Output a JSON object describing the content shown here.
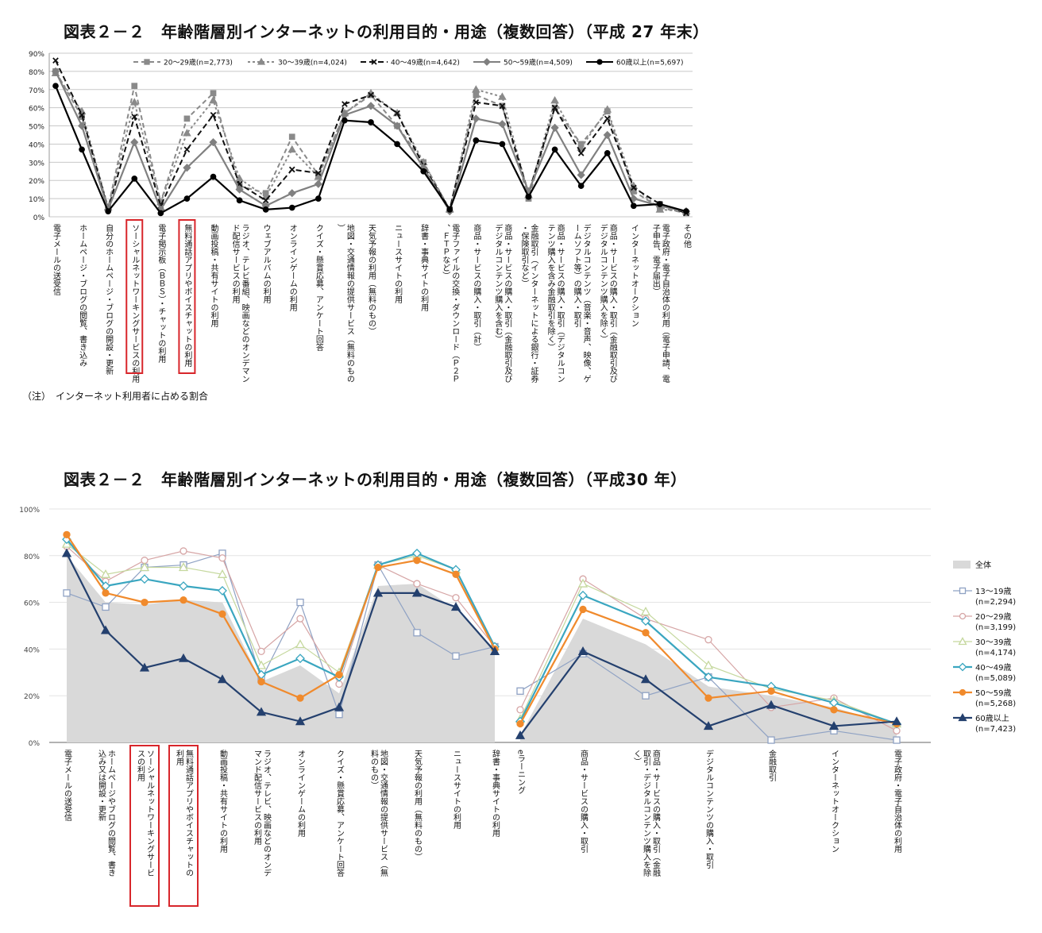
{
  "chart_data": [
    {
      "type": "line",
      "title": "図表２－２　年齢階層別インターネットの利用目的・用途（複数回答）（平成 27 年末）",
      "note": "（注）　インターネット利用者に占める割合",
      "ylim": [
        0,
        90
      ],
      "yticks": [
        "0%",
        "10%",
        "20%",
        "30%",
        "40%",
        "50%",
        "60%",
        "70%",
        "80%",
        "90%"
      ],
      "grid": true,
      "legend_position": "top",
      "categories": [
        "電子メールの送受信",
        "ホームページ・ブログの閲覧、書き込み",
        "自分のホームページ・ブログの開設・更新",
        "ソーシャルネットワーキングサービスの利用",
        "電子掲示板（ＢＢＳ）・チャットの利用",
        "無料通話アプリやボイスチャットの利用",
        "動画投稿・共有サイトの利用",
        "ラジオ、テレビ番組、映画などのオンデマンド配信サービスの利用",
        "ウェブアルバムの利用",
        "オンラインゲームの利用",
        "クイズ・懸賞応募、アンケート回答",
        "地図・交通情報の提供サービス（無料のもの）",
        "天気予報の利用（無料のもの）",
        "ニュースサイトの利用",
        "辞書・事典サイトの利用",
        "電子ファイルの交換・ダウンロード（Ｐ２Ｐ、ＦＴＰなど）",
        "商品・サービスの購入・取引（計）",
        "商品・サービスの購入・取引（金融取引及びデジタルコンテンツ購入を含む）",
        "金融取引（インターネットによる銀行・証券・保険取引など）",
        "商品・サービスの購入・取引（デジタルコンテンツ購入を含み金融取引を除く）",
        "デジタルコンテンツ（音楽・音声、映像、ゲームソフト等）の購入・取引",
        "商品・サービスの購入・取引（金融取引及びデジタルコンテンツ購入を除く）",
        "インターネットオークション",
        "電子政府・電子自治体の利用（電子申請、電子申告、電子届出）",
        "その他"
      ],
      "highlighted": [
        3,
        5
      ],
      "series": [
        {
          "name": "20～29歳(n=2,773)",
          "color": "#8a8a8a",
          "dash": "6,4",
          "marker": "square",
          "values": [
            80,
            55,
            5,
            72,
            8,
            54,
            68,
            17,
            13,
            44,
            23,
            57,
            67,
            50,
            30,
            4,
            67,
            61,
            10,
            60,
            40,
            58,
            14,
            5,
            2
          ]
        },
        {
          "name": "30～39歳(n=4,024)",
          "color": "#8a8a8a",
          "dash": "3,3",
          "marker": "triangle",
          "values": [
            79,
            58,
            5,
            63,
            8,
            46,
            64,
            21,
            11,
            37,
            22,
            57,
            68,
            57,
            30,
            4,
            70,
            66,
            12,
            64,
            38,
            59,
            17,
            4,
            3
          ]
        },
        {
          "name": "40～49歳(n=4,642)",
          "color": "#111111",
          "dash": "7,4",
          "marker": "x",
          "values": [
            86,
            56,
            4,
            55,
            6,
            37,
            56,
            18,
            9,
            26,
            24,
            62,
            67,
            57,
            28,
            4,
            63,
            61,
            13,
            60,
            35,
            54,
            16,
            7,
            2
          ]
        },
        {
          "name": "50～59歳(n=4,509)",
          "color": "#808080",
          "dash": "",
          "marker": "diamond",
          "values": [
            80,
            50,
            4,
            41,
            4,
            27,
            41,
            15,
            6,
            13,
            18,
            56,
            61,
            50,
            27,
            3,
            54,
            51,
            14,
            49,
            23,
            45,
            10,
            6,
            3
          ]
        },
        {
          "name": "60歳以上(n=5,697)",
          "color": "#000000",
          "dash": "",
          "marker": "circle",
          "values": [
            72,
            37,
            3,
            21,
            2,
            10,
            22,
            9,
            4,
            5,
            10,
            53,
            52,
            40,
            25,
            4,
            42,
            40,
            11,
            37,
            17,
            35,
            6,
            7,
            3
          ]
        }
      ]
    },
    {
      "type": "line",
      "title": "図表２－２　年齢階層別インターネットの利用目的・用途（複数回答）（平成30 年）",
      "ylim": [
        0,
        100
      ],
      "yticks": [
        "0%",
        "20%",
        "40%",
        "60%",
        "80%",
        "100%"
      ],
      "grid": true,
      "legend_position": "right",
      "categories": [
        "電子メールの送受信",
        "ホームページやブログの閲覧、書き込み又は開設・更新",
        "ソーシャルネットワーキングサービスの利用",
        "無料通話アプリやボイスチャットの利用",
        "動画投稿・共有サイトの利用",
        "ラジオ、テレビ、映画などのオンデマンド配信サービスの利用",
        "オンラインゲームの利用",
        "クイズ・懸賞応募、アンケート回答",
        "地図・交通情報の提供サービス（無料のもの）",
        "天気予報の利用（無料のもの）",
        "ニュースサイトの利用",
        "辞書・事典サイトの利用",
        "eラーニング",
        "商品・サービスの購入・取引",
        "商品・サービスの購入・取引（金融取引・デジタルコンテンツ購入を除く）",
        "デジタルコンテンツの購入・取引",
        "金融取引",
        "インターネットオークション",
        "電子政府・電子自治体の利用"
      ],
      "highlighted": [
        2,
        3
      ],
      "area": {
        "name": "全体",
        "color": "#d9d9d9",
        "values": [
          80,
          60,
          59,
          61,
          60,
          26,
          33,
          21,
          67,
          68,
          57,
          40,
          3,
          53,
          42,
          24,
          20,
          15,
          7
        ]
      },
      "series": [
        {
          "name": "13～19歳",
          "n": "(n=2,294)",
          "color": "#8fa2c4",
          "marker": "square",
          "values": [
            64,
            58,
            75,
            76,
            81,
            27,
            60,
            12,
            76,
            47,
            37,
            41,
            22,
            38,
            20,
            28,
            1,
            5,
            1
          ]
        },
        {
          "name": "20～29歳",
          "n": "(n=3,199)",
          "color": "#d6a5a5",
          "marker": "circle",
          "values": [
            84,
            69,
            78,
            82,
            79,
            39,
            53,
            25,
            76,
            68,
            62,
            41,
            14,
            70,
            53,
            44,
            15,
            19,
            5
          ]
        },
        {
          "name": "30～39歳",
          "n": "(n=4,174)",
          "color": "#c5d89e",
          "marker": "triangle",
          "values": [
            85,
            72,
            75,
            75,
            72,
            33,
            42,
            30,
            76,
            80,
            74,
            41,
            10,
            68,
            56,
            33,
            23,
            18,
            8
          ]
        },
        {
          "name": "40～49歳",
          "n": "(n=5,089)",
          "color": "#3aa6c0",
          "marker": "diamond",
          "values": [
            87,
            67,
            70,
            67,
            65,
            29,
            36,
            28,
            76,
            81,
            74,
            41,
            9,
            63,
            52,
            28,
            24,
            17,
            8
          ]
        },
        {
          "name": "50～59歳",
          "n": "(n=5,268)",
          "color": "#f08a2c",
          "marker": "circle",
          "values": [
            89,
            64,
            60,
            61,
            55,
            26,
            19,
            29,
            75,
            78,
            72,
            40,
            8,
            57,
            47,
            19,
            22,
            14,
            8
          ]
        },
        {
          "name": "60歳以上",
          "n": "(n=7,423)",
          "color": "#24406e",
          "marker": "triangle",
          "values": [
            81,
            48,
            32,
            36,
            27,
            13,
            9,
            15,
            64,
            64,
            58,
            39,
            3,
            39,
            27,
            7,
            16,
            7,
            9
          ]
        }
      ]
    }
  ],
  "colors": {
    "highlight_box": "#d8262b",
    "grid": "#c8c8c8",
    "grid2": "#e3e3e3"
  }
}
